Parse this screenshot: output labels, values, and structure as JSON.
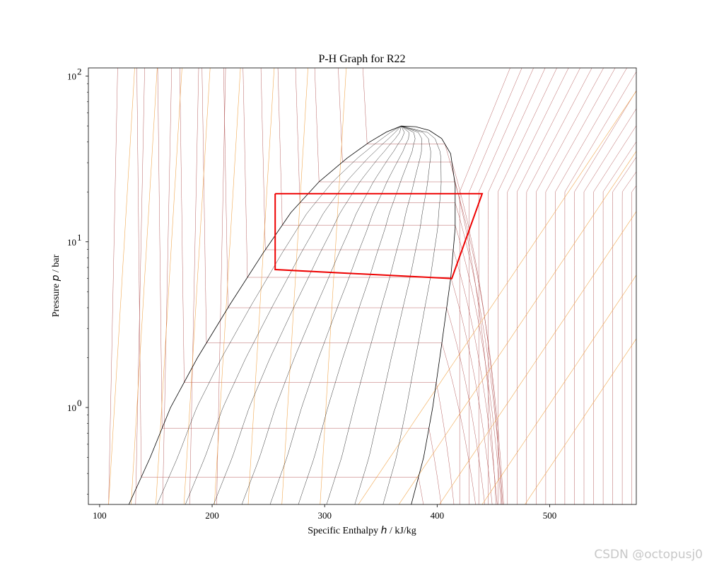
{
  "chart_data": {
    "type": "line",
    "title": "P-H Graph for R22",
    "xlabel_prefix": "Specific Enthalpy ",
    "xlabel_var": "h",
    "xlabel_unit": " / kJ/kg",
    "ylabel_prefix": "Pressure ",
    "ylabel_var": "p",
    "ylabel_unit": " / bar",
    "xlim": [
      90,
      577
    ],
    "ylim": [
      0.26,
      112
    ],
    "yscale": "log",
    "xticks": [
      100,
      200,
      300,
      400,
      500
    ],
    "yticks": [
      {
        "value": 1,
        "label": "10",
        "exp": "0"
      },
      {
        "value": 10,
        "label": "10",
        "exp": "1"
      },
      {
        "value": 100,
        "label": "10",
        "exp": "2"
      }
    ],
    "critical_point": {
      "h": 368,
      "p": 49.9
    },
    "saturation_liquid": [
      {
        "h": 126,
        "p": 0.26
      },
      {
        "h": 145,
        "p": 0.5
      },
      {
        "h": 163,
        "p": 1
      },
      {
        "h": 187,
        "p": 2
      },
      {
        "h": 216,
        "p": 4.2
      },
      {
        "h": 245,
        "p": 8.5
      },
      {
        "h": 270,
        "p": 15
      },
      {
        "h": 295,
        "p": 23
      },
      {
        "h": 320,
        "p": 32
      },
      {
        "h": 340,
        "p": 40
      },
      {
        "h": 355,
        "p": 46
      },
      {
        "h": 368,
        "p": 49.9
      }
    ],
    "saturation_vapor": [
      {
        "h": 368,
        "p": 49.9
      },
      {
        "h": 381,
        "p": 49.5
      },
      {
        "h": 393,
        "p": 47
      },
      {
        "h": 404,
        "p": 42
      },
      {
        "h": 412,
        "p": 34
      },
      {
        "h": 416,
        "p": 22
      },
      {
        "h": 416,
        "p": 12
      },
      {
        "h": 412,
        "p": 6
      },
      {
        "h": 404,
        "p": 2.4
      },
      {
        "h": 396,
        "p": 1
      },
      {
        "h": 388,
        "p": 0.5
      },
      {
        "h": 377,
        "p": 0.26
      }
    ],
    "quality_fractions": [
      0.1,
      0.2,
      0.3,
      0.4,
      0.5,
      0.6,
      0.7,
      0.8,
      0.9
    ],
    "isotherm_pressures": [
      0.38,
      0.75,
      1.42,
      2.45,
      4.0,
      6.1,
      8.95,
      12.6,
      17.2,
      23.0,
      30.3,
      39.0
    ],
    "isotherm_offsets": [
      -20,
      -10,
      0,
      10,
      20,
      30,
      40,
      50,
      60,
      70,
      80,
      90,
      100,
      110,
      120,
      130,
      140,
      150,
      160,
      170,
      180,
      190,
      200
    ],
    "isentrope_h": [
      108,
      128,
      150,
      175,
      202,
      232,
      262,
      296,
      330,
      366,
      402,
      440,
      478
    ],
    "cycle": [
      {
        "h": 256,
        "p": 19.5
      },
      {
        "h": 440,
        "p": 19.5
      },
      {
        "h": 413,
        "p": 6.0
      },
      {
        "h": 256,
        "p": 6.8
      },
      {
        "h": 256,
        "p": 19.5
      }
    ],
    "colors": {
      "saturation": "#000000",
      "quality_lines": "#000000",
      "isotherms": "#a63a3a",
      "isentropes": "#f0a040",
      "cycle": "#ee0000"
    }
  },
  "watermark": "CSDN @octopusj0"
}
